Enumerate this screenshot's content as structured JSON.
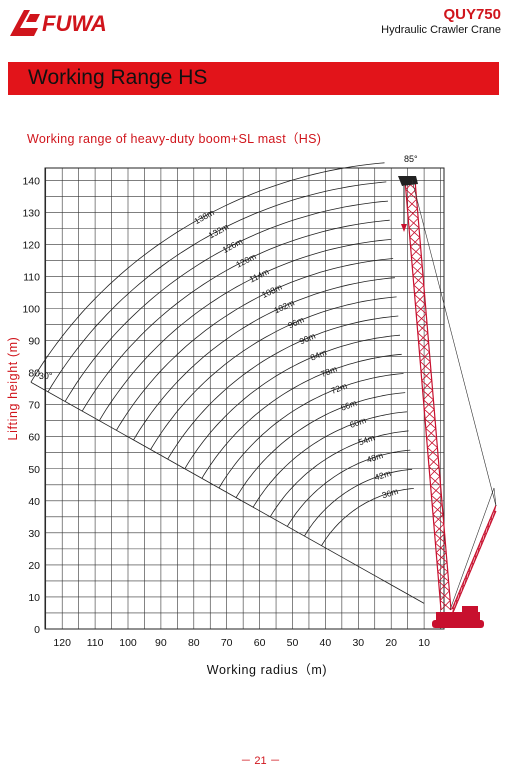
{
  "header": {
    "brand": "FUWA",
    "model": "QUY750",
    "subtitle": "Hydraulic Crawler Crane"
  },
  "banner": {
    "title": "Working Range HS"
  },
  "colors": {
    "brand_red": "#e2141a",
    "text": "#111111",
    "grid": "#222222"
  },
  "chart_data": {
    "type": "line",
    "title": "Working range of heavy-duty boom+SL mast（HS)",
    "xlabel": "Working radius（m)",
    "ylabel": "Lifting height (m)",
    "xlim": [
      130,
      0
    ],
    "ylim": [
      0,
      145
    ],
    "x_ticks": [
      120,
      110,
      100,
      90,
      80,
      70,
      60,
      50,
      40,
      30,
      20,
      10
    ],
    "y_ticks": [
      0,
      10,
      20,
      30,
      40,
      50,
      60,
      70,
      80,
      90,
      100,
      110,
      120,
      130,
      140
    ],
    "grid": true,
    "min_angle_label": "30°",
    "max_angle_label": "85°",
    "boom_lengths": [
      {
        "label": "138m",
        "value": 138
      },
      {
        "label": "132m",
        "value": 132
      },
      {
        "label": "126m",
        "value": 126
      },
      {
        "label": "120m",
        "value": 120
      },
      {
        "label": "114m",
        "value": 114
      },
      {
        "label": "108m",
        "value": 108
      },
      {
        "label": "102m",
        "value": 102
      },
      {
        "label": "96m",
        "value": 96
      },
      {
        "label": "90m",
        "value": 90
      },
      {
        "label": "84m",
        "value": 84
      },
      {
        "label": "78m",
        "value": 78
      },
      {
        "label": "72m",
        "value": 72
      },
      {
        "label": "66m",
        "value": 66
      },
      {
        "label": "60m",
        "value": 60
      },
      {
        "label": "54m",
        "value": 54
      },
      {
        "label": "48m",
        "value": 48
      },
      {
        "label": "42m",
        "value": 42
      },
      {
        "label": "36m",
        "value": 36
      }
    ]
  },
  "footer": {
    "page": "－ 21 －"
  }
}
